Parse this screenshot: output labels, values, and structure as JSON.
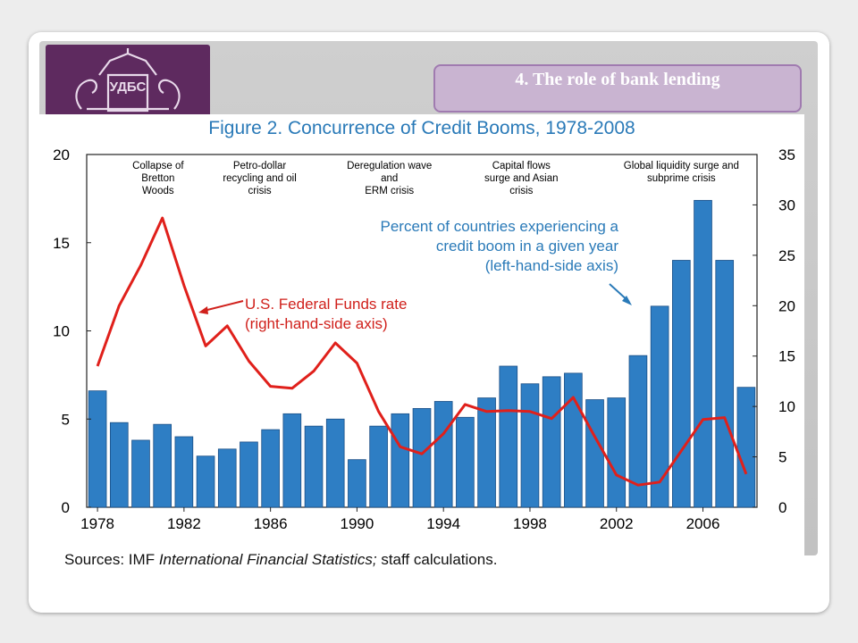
{
  "slide": {
    "heading": "4. The role of bank lending",
    "sources_prefix": "Sources: IMF ",
    "sources_italic": "International Financial Statistics;",
    "sources_suffix": " staff calculations."
  },
  "colors": {
    "bar": "#2e7ec4",
    "bar_edge": "#1b4f86",
    "line": "#e0201b",
    "blue_text": "#2a7ab8",
    "red_text": "#d0201b",
    "logo_bg": "#5e2a5f",
    "heading_bg": "#c9b4d1"
  },
  "icons": {
    "logo": "university-crest-icon"
  },
  "chart_data": {
    "type": "bar",
    "title": "Figure 2. Concurrence of Credit Booms, 1978-2008",
    "x": [
      1978,
      1979,
      1980,
      1981,
      1982,
      1983,
      1984,
      1985,
      1986,
      1987,
      1988,
      1989,
      1990,
      1991,
      1992,
      1993,
      1994,
      1995,
      1996,
      1997,
      1998,
      1999,
      2000,
      2001,
      2002,
      2003,
      2004,
      2005,
      2006,
      2007,
      2008
    ],
    "x_tick_labels": [
      "1978",
      "1982",
      "1986",
      "1990",
      "1994",
      "1998",
      "2002",
      "2006"
    ],
    "left_axis": {
      "ylim": [
        0,
        20
      ],
      "ticks": [
        "0",
        "5",
        "10",
        "15",
        "20"
      ]
    },
    "right_axis": {
      "ylim": [
        0,
        35
      ],
      "ticks": [
        "0",
        "5",
        "10",
        "15",
        "20",
        "25",
        "30",
        "35"
      ]
    },
    "series": [
      {
        "name": "Percent of countries experiencing a credit boom in a given year",
        "type": "bar",
        "axis": "left",
        "values": [
          6.6,
          4.8,
          3.8,
          4.7,
          4.0,
          2.9,
          3.3,
          3.7,
          4.4,
          5.3,
          4.6,
          5.0,
          2.7,
          4.6,
          5.3,
          5.6,
          6.0,
          5.1,
          6.2,
          8.0,
          7.0,
          7.4,
          7.6,
          6.1,
          6.2,
          8.6,
          11.4,
          14.0,
          17.4,
          14.0,
          6.8
        ]
      },
      {
        "name": "U.S. Federal Funds rate",
        "type": "line",
        "axis": "right",
        "values": [
          14.0,
          20.0,
          24.0,
          28.7,
          22.0,
          16.0,
          18.0,
          14.5,
          12.0,
          11.8,
          13.5,
          16.3,
          14.3,
          9.5,
          6.0,
          5.3,
          7.3,
          10.2,
          9.5,
          9.6,
          9.5,
          8.8,
          10.9,
          7.0,
          3.2,
          2.2,
          2.5,
          5.6,
          8.7,
          8.9,
          3.3
        ]
      }
    ],
    "annotations": [
      {
        "lines": [
          "Collapse of",
          "Bretton",
          "Woods"
        ],
        "year": 1980.8
      },
      {
        "lines": [
          "Petro-dollar",
          "recycling and oil",
          "crisis"
        ],
        "year": 1985.5
      },
      {
        "lines": [
          "Deregulation wave",
          "and",
          "ERM crisis"
        ],
        "year": 1991.5
      },
      {
        "lines": [
          "Capital flows",
          "surge and Asian",
          "crisis"
        ],
        "year": 1997.6
      },
      {
        "lines": [
          "Global liquidity surge and",
          "subprime crisis"
        ],
        "year": 2005.0
      }
    ],
    "bar_label": [
      "Percent of countries experiencing a",
      "credit boom in a given year",
      "(left-hand-side axis)"
    ],
    "line_label": [
      "U.S. Federal Funds rate",
      "(right-hand-side axis)"
    ]
  }
}
